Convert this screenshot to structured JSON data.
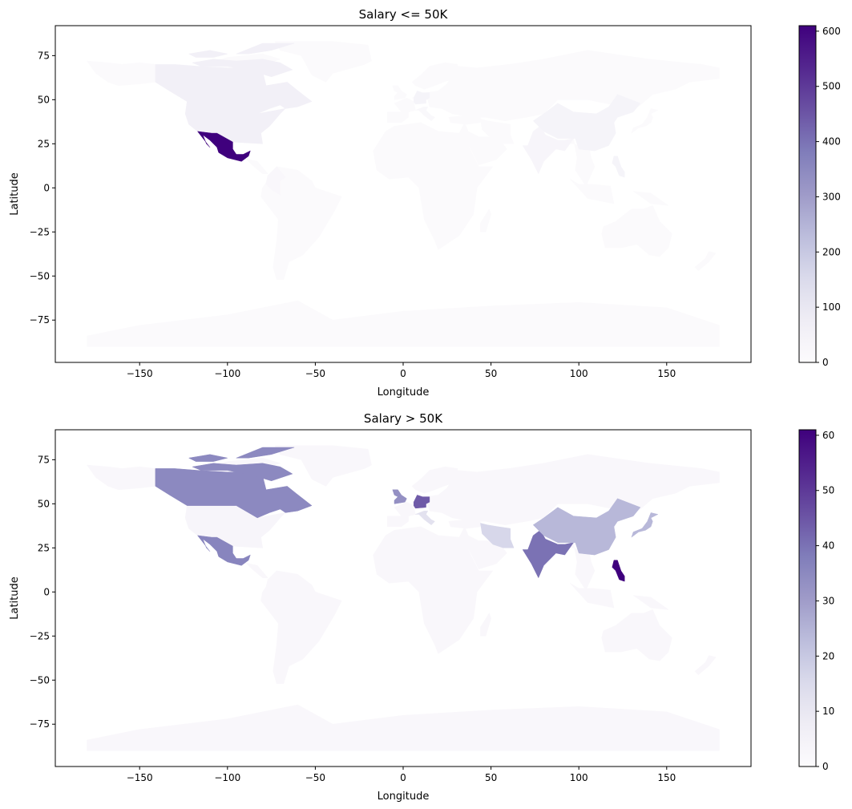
{
  "chart_data": [
    {
      "type": "choropleth",
      "title": "Salary <= 50K",
      "xlabel": "Longitude",
      "ylabel": "Latitude",
      "xlim": [
        -198,
        198
      ],
      "ylim": [
        -99,
        92
      ],
      "xticks": [
        -150,
        -100,
        -50,
        0,
        50,
        100,
        150
      ],
      "yticks": [
        75,
        50,
        25,
        0,
        -25,
        -50,
        -75
      ],
      "colormap": "Purples",
      "colorbar": {
        "min": 0,
        "max": 610,
        "ticks": [
          0,
          100,
          200,
          300,
          400,
          500,
          600
        ]
      },
      "regions": [
        {
          "name": "Mexico",
          "value": 610
        },
        {
          "name": "United States",
          "value": 60
        },
        {
          "name": "Canada",
          "value": 60
        },
        {
          "name": "China",
          "value": 40
        },
        {
          "name": "Germany",
          "value": 40
        },
        {
          "name": "Philippines",
          "value": 40
        },
        {
          "name": "India",
          "value": 30
        },
        {
          "name": "Colombia",
          "value": 20
        },
        {
          "name": "Italy",
          "value": 15
        },
        {
          "name": "Other",
          "value": 5
        }
      ]
    },
    {
      "type": "choropleth",
      "title": "Salary > 50K",
      "xlabel": "Longitude",
      "ylabel": "Latitude",
      "xlim": [
        -198,
        198
      ],
      "ylim": [
        -99,
        92
      ],
      "xticks": [
        -150,
        -100,
        -50,
        0,
        50,
        100,
        150
      ],
      "yticks": [
        75,
        50,
        25,
        0,
        -25,
        -50,
        -75
      ],
      "colormap": "Purples",
      "colorbar": {
        "min": 0,
        "max": 61,
        "ticks": [
          0,
          10,
          20,
          30,
          40,
          50,
          60
        ]
      },
      "regions": [
        {
          "name": "Philippines",
          "value": 61
        },
        {
          "name": "Germany",
          "value": 44
        },
        {
          "name": "India",
          "value": 40
        },
        {
          "name": "Mexico",
          "value": 36
        },
        {
          "name": "Canada",
          "value": 35
        },
        {
          "name": "United Kingdom",
          "value": 33
        },
        {
          "name": "China",
          "value": 24
        },
        {
          "name": "Japan",
          "value": 24
        },
        {
          "name": "Iran",
          "value": 16
        },
        {
          "name": "Italy",
          "value": 12
        },
        {
          "name": "United States",
          "value": 3
        },
        {
          "name": "Other",
          "value": 2
        }
      ]
    }
  ]
}
